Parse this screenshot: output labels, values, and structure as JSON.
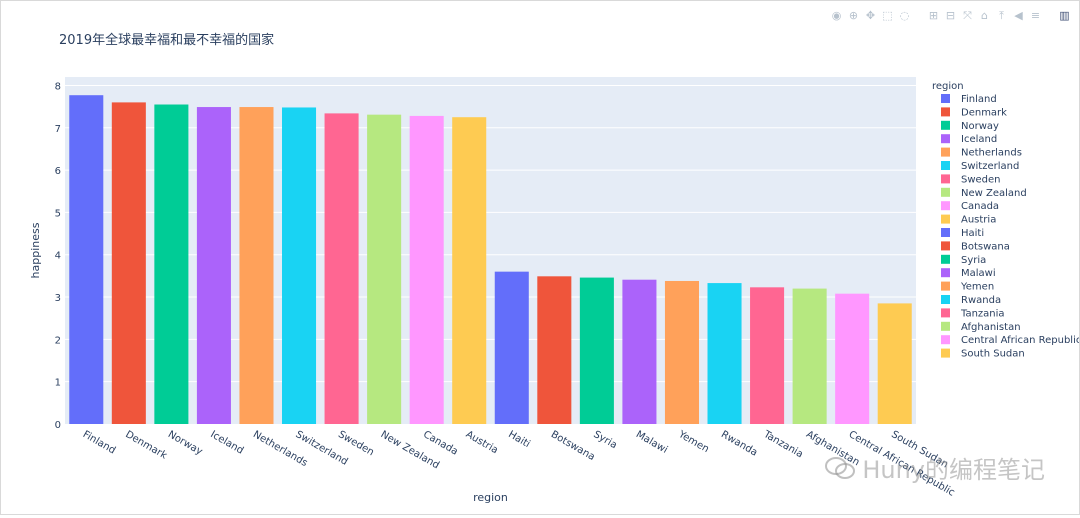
{
  "toolbar": {
    "items": [
      {
        "name": "camera-icon",
        "glyph": "◉"
      },
      {
        "name": "zoom-icon",
        "glyph": "⊕"
      },
      {
        "name": "pan-icon",
        "glyph": "✥"
      },
      {
        "name": "box-select-icon",
        "glyph": "⬚"
      },
      {
        "name": "lasso-select-icon",
        "glyph": "◌"
      },
      {
        "name": "zoom-in-icon",
        "glyph": "⊞"
      },
      {
        "name": "zoom-out-icon",
        "glyph": "⊟"
      },
      {
        "name": "autoscale-icon",
        "glyph": "⤧"
      },
      {
        "name": "reset-axes-icon",
        "glyph": "⌂"
      },
      {
        "name": "spike-lines-icon",
        "glyph": "⤒"
      },
      {
        "name": "hover-closest-icon",
        "glyph": "◀"
      },
      {
        "name": "hover-compare-icon",
        "glyph": "≡"
      },
      {
        "name": "plotly-logo-icon",
        "glyph": "▥"
      }
    ]
  },
  "watermark_text": "Huny的编程笔记",
  "colors": {
    "plot_bg": "#e5ecf6",
    "grid": "#ffffff",
    "text": "#2a3f5f",
    "palette": [
      "#636efa",
      "#EF553B",
      "#00cc96",
      "#ab63fa",
      "#FFA15A",
      "#19d3f3",
      "#FF6692",
      "#B6E880",
      "#FF97FF",
      "#FECB52"
    ]
  },
  "chart_data": {
    "type": "bar",
    "title": "2019年全球最幸福和最不幸福的国家",
    "xlabel": "region",
    "ylabel": "happiness",
    "ylim": [
      0,
      8.2
    ],
    "yticks": [
      0,
      1,
      2,
      3,
      4,
      5,
      6,
      7,
      8
    ],
    "grid": true,
    "legend_title": "region",
    "legend_position": "right",
    "categories": [
      "Finland",
      "Denmark",
      "Norway",
      "Iceland",
      "Netherlands",
      "Switzerland",
      "Sweden",
      "New Zealand",
      "Canada",
      "Austria",
      "Haiti",
      "Botswana",
      "Syria",
      "Malawi",
      "Yemen",
      "Rwanda",
      "Tanzania",
      "Afghanistan",
      "Central African Republic",
      "South Sudan"
    ],
    "values": [
      7.77,
      7.6,
      7.55,
      7.49,
      7.49,
      7.48,
      7.34,
      7.31,
      7.28,
      7.25,
      3.6,
      3.49,
      3.46,
      3.41,
      3.38,
      3.33,
      3.23,
      3.2,
      3.08,
      2.85
    ]
  }
}
